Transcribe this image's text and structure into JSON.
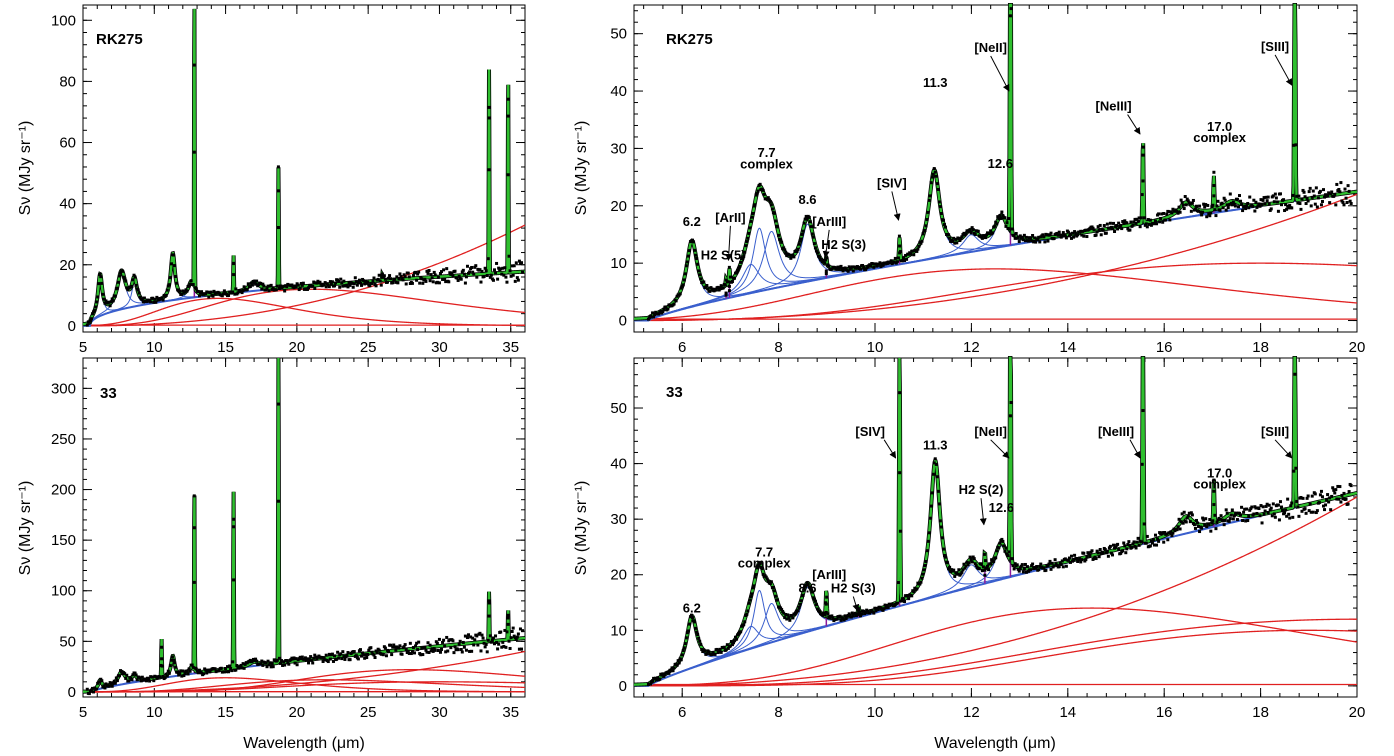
{
  "colors": {
    "pah": "#3a5fcd",
    "fit": "#2fbf2f",
    "continuum": "#e02020",
    "lines": "#8b1a9b",
    "data": "#000000",
    "fit_outline": "#000000"
  },
  "chart_data": [
    {
      "id": "tl",
      "type": "line",
      "panel_label": "RK275",
      "xlabel": "Wavelength (μm)",
      "ylabel": "Sν (MJy sr⁻¹)",
      "xlim": [
        5,
        36
      ],
      "ylim": [
        -2,
        105
      ],
      "xticks": [
        5,
        10,
        15,
        20,
        25,
        30,
        35
      ],
      "yticks": [
        0,
        20,
        40,
        60,
        80,
        100
      ],
      "base": {
        "a": 5.5,
        "b": 35,
        "p": 14,
        "lp": 0.45,
        "scale": 1.25
      },
      "pah": [
        [
          6.2,
          13,
          0.18
        ],
        [
          7.7,
          12,
          0.35
        ],
        [
          8.6,
          8,
          0.22
        ],
        [
          11.3,
          15,
          0.18
        ],
        [
          12.6,
          5,
          0.25
        ],
        [
          17,
          3,
          0.4
        ]
      ],
      "lines": [
        [
          12.81,
          95
        ],
        [
          15.56,
          12
        ],
        [
          18.71,
          40
        ],
        [
          33.48,
          68
        ],
        [
          34.82,
          64
        ],
        [
          26,
          2
        ]
      ],
      "continua": [
        [
          14.5,
          9,
          0.32
        ],
        [
          21,
          12,
          0.38
        ],
        [
          5,
          33,
          20
        ]
      ]
    },
    {
      "id": "tr",
      "type": "line",
      "panel_label": "RK275",
      "xlabel": "Wavelength (μm)",
      "ylabel": "Sν (MJy sr⁻¹)",
      "xlim": [
        5,
        20
      ],
      "ylim": [
        -2,
        55
      ],
      "xticks": [
        6,
        8,
        10,
        12,
        14,
        16,
        18,
        20
      ],
      "yticks": [
        0,
        10,
        20,
        30,
        40,
        50
      ],
      "base": {
        "a": 5.3,
        "b": 20,
        "p": 22,
        "lp": 0.8,
        "scale": 1.02
      },
      "pah": [
        [
          6.2,
          11,
          0.14
        ],
        [
          7.42,
          5,
          0.22
        ],
        [
          7.6,
          11,
          0.16
        ],
        [
          7.85,
          10,
          0.2
        ],
        [
          8.6,
          10,
          0.17
        ],
        [
          11.23,
          15,
          0.14
        ],
        [
          11.99,
          3,
          0.2
        ],
        [
          12.62,
          5,
          0.16
        ],
        [
          16.45,
          2.5,
          0.18
        ],
        [
          17.4,
          1.5,
          0.2
        ]
      ],
      "lines": [
        [
          6.98,
          2.5
        ],
        [
          6.91,
          1.2
        ],
        [
          8.99,
          1.5
        ],
        [
          10.51,
          4
        ],
        [
          12.81,
          80
        ],
        [
          15.56,
          15
        ],
        [
          17.03,
          6
        ],
        [
          18.71,
          70
        ]
      ],
      "continua": [
        [
          12.5,
          9,
          0.32
        ],
        [
          18,
          10,
          0.35
        ],
        [
          5,
          22,
          6
        ]
      ],
      "annotations": [
        {
          "text": "6.2",
          "x": 6.2,
          "y": 16.5
        },
        {
          "text": "H2 S(5)",
          "x": 6.85,
          "y": 10.6
        },
        {
          "text": "[ArII]",
          "x": 7.0,
          "y": 17.2,
          "arrow": [
            6.98,
            10.5
          ]
        },
        {
          "text": "7.7",
          "x": 7.75,
          "y": 28.5
        },
        {
          "text": "complex",
          "x": 7.75,
          "y": 26.5
        },
        {
          "text": "8.6",
          "x": 8.6,
          "y": 20.3
        },
        {
          "text": "[ArIII]",
          "x": 9.05,
          "y": 16.5,
          "arrow": [
            8.99,
            11
          ]
        },
        {
          "text": "H2 S(3)",
          "x": 9.35,
          "y": 12.5
        },
        {
          "text": "[SIV]",
          "x": 10.35,
          "y": 23.2,
          "arrow": [
            10.51,
            17.5
          ]
        },
        {
          "text": "11.3",
          "x": 11.25,
          "y": 40.7
        },
        {
          "text": "[NeII]",
          "x": 12.4,
          "y": 46.8,
          "arrow": [
            12.8,
            40
          ]
        },
        {
          "text": "12.6",
          "x": 12.6,
          "y": 26.6
        },
        {
          "text": "[NeIII]",
          "x": 14.95,
          "y": 36.6,
          "arrow": [
            15.52,
            32.5
          ]
        },
        {
          "text": "17.0",
          "x": 17.15,
          "y": 33.0
        },
        {
          "text": "complex",
          "x": 17.15,
          "y": 31.1
        },
        {
          "text": "[SIII]",
          "x": 18.3,
          "y": 47.0,
          "arrow": [
            18.67,
            41
          ]
        }
      ]
    },
    {
      "id": "bl",
      "type": "line",
      "panel_label": "33",
      "xlabel": "Wavelength (μm)",
      "ylabel": "Sν (MJy sr⁻¹)",
      "xlim": [
        5,
        36
      ],
      "ylim": [
        -5,
        330
      ],
      "xticks": [
        5,
        10,
        15,
        20,
        25,
        30,
        35
      ],
      "yticks": [
        0,
        50,
        100,
        150,
        200,
        250,
        300
      ],
      "base": {
        "a": 5.5,
        "b": 35,
        "p": 52,
        "lp": 0.75,
        "scale": 1.0
      },
      "pah": [
        [
          6.2,
          8,
          0.14
        ],
        [
          7.7,
          12,
          0.3
        ],
        [
          8.6,
          6,
          0.2
        ],
        [
          11.3,
          20,
          0.15
        ],
        [
          12.6,
          6,
          0.2
        ],
        [
          17,
          4,
          0.4
        ]
      ],
      "lines": [
        [
          10.51,
          38
        ],
        [
          12.81,
          180
        ],
        [
          15.56,
          175
        ],
        [
          18.71,
          320
        ],
        [
          33.48,
          50
        ],
        [
          34.82,
          30
        ]
      ],
      "continua": [
        [
          15,
          14,
          0.3
        ],
        [
          22,
          12,
          0.35
        ],
        [
          28,
          22,
          0.3
        ],
        [
          30,
          10,
          0.4
        ],
        [
          5,
          40,
          8
        ]
      ]
    },
    {
      "id": "br",
      "type": "line",
      "panel_label": "33",
      "xlabel": "Wavelength (μm)",
      "ylabel": "Sν (MJy sr⁻¹)",
      "xlim": [
        5,
        20
      ],
      "ylim": [
        -2,
        59
      ],
      "xticks": [
        6,
        8,
        10,
        12,
        14,
        16,
        18,
        20
      ],
      "yticks": [
        0,
        10,
        20,
        30,
        40,
        50
      ],
      "base": {
        "a": 5.3,
        "b": 20,
        "p": 34,
        "lp": 0.85,
        "scale": 1.02
      },
      "pah": [
        [
          6.2,
          9,
          0.13
        ],
        [
          7.42,
          4,
          0.2
        ],
        [
          7.6,
          10,
          0.14
        ],
        [
          7.85,
          7,
          0.18
        ],
        [
          8.6,
          8,
          0.17
        ],
        [
          11.25,
          24,
          0.12
        ],
        [
          11.99,
          4,
          0.2
        ],
        [
          12.62,
          6,
          0.16
        ],
        [
          16.45,
          3,
          0.18
        ],
        [
          17.4,
          1.5,
          0.2
        ]
      ],
      "lines": [
        [
          8.99,
          5
        ],
        [
          9.66,
          1.5
        ],
        [
          10.51,
          48
        ],
        [
          12.28,
          3
        ],
        [
          12.81,
          58
        ],
        [
          15.56,
          48
        ],
        [
          17.03,
          8
        ],
        [
          18.71,
          48
        ]
      ],
      "continua": [
        [
          14.5,
          14,
          0.3
        ],
        [
          19,
          10,
          0.3
        ],
        [
          20,
          12,
          0.35
        ],
        [
          5,
          34,
          3
        ]
      ],
      "annotations": [
        {
          "text": "6.2",
          "x": 6.2,
          "y": 13.2
        },
        {
          "text": "7.7",
          "x": 7.7,
          "y": 23.3
        },
        {
          "text": "complex",
          "x": 7.7,
          "y": 21.3
        },
        {
          "text": "8.6",
          "x": 8.6,
          "y": 16.8
        },
        {
          "text": "[ArIII]",
          "x": 9.05,
          "y": 19.2
        },
        {
          "text": "H2 S(3)",
          "x": 9.55,
          "y": 16.8,
          "arrow": [
            9.66,
            13.5
          ]
        },
        {
          "text": "[SIV]",
          "x": 9.9,
          "y": 45.0,
          "arrow": [
            10.45,
            41
          ]
        },
        {
          "text": "11.3",
          "x": 11.25,
          "y": 42.5
        },
        {
          "text": "H2 S(2)",
          "x": 12.2,
          "y": 34.5,
          "arrow": [
            12.28,
            29
          ]
        },
        {
          "text": "12.6",
          "x": 12.62,
          "y": 31.3
        },
        {
          "text": "[NeII]",
          "x": 12.4,
          "y": 45.0,
          "arrow": [
            12.8,
            41
          ]
        },
        {
          "text": "[NeIII]",
          "x": 15.0,
          "y": 45.0,
          "arrow": [
            15.52,
            41
          ]
        },
        {
          "text": "17.0",
          "x": 17.15,
          "y": 37.5
        },
        {
          "text": "complex",
          "x": 17.15,
          "y": 35.5
        },
        {
          "text": "[SIII]",
          "x": 18.3,
          "y": 45.0,
          "arrow": [
            18.67,
            41
          ]
        }
      ]
    }
  ]
}
